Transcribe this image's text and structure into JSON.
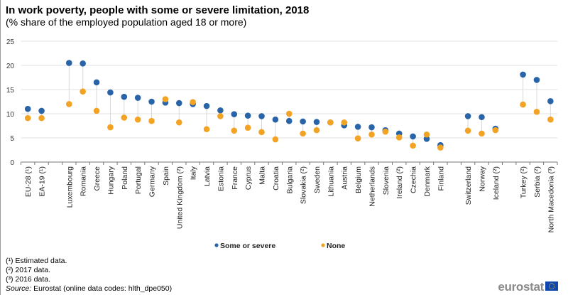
{
  "title": "In work poverty, people with some or severe limitation, 2018",
  "subtitle": "(% share of the employed population aged 18 or more)",
  "chart_data": {
    "type": "scatter",
    "title": "In work poverty, people with some or severe limitation, 2018",
    "subtitle": "(% share of the employed population aged 18 or more)",
    "categories": [
      "EU-28 (¹)",
      "EA-19 (¹)",
      "",
      "Luxembourg",
      "Romania",
      "Greece",
      "Hungary",
      "Poland",
      "Portugal",
      "Germany",
      "Spain",
      "United Kingdom (²)",
      "Italy",
      "Latvia",
      "Estonia",
      "France",
      "Cyprus",
      "Malta",
      "Croatia",
      "Bulgaria",
      "Slovakia (²)",
      "Sweden",
      "Lithuania",
      "Austria",
      "Belgium",
      "Netherlands",
      "Slovenia",
      "Ireland (²)",
      "Czechia",
      "Denmark",
      "Finland",
      "",
      "Switzerland",
      "Norway",
      "Iceland (²)",
      "",
      "Turkey (²)",
      "Serbia (²)",
      "North Macedonia (³)"
    ],
    "series": [
      {
        "name": "Some or severe",
        "color": "#2a64a8",
        "values": [
          11.0,
          10.6,
          null,
          20.5,
          20.4,
          16.5,
          14.4,
          13.5,
          13.3,
          12.5,
          12.3,
          12.2,
          12.0,
          11.6,
          10.7,
          9.9,
          9.6,
          9.5,
          8.8,
          8.5,
          8.4,
          8.3,
          8.2,
          7.6,
          7.3,
          7.2,
          6.6,
          5.9,
          5.3,
          4.8,
          3.5,
          null,
          9.5,
          9.3,
          6.9,
          null,
          18.1,
          17.0,
          12.6
        ]
      },
      {
        "name": "None",
        "color": "#f3a323",
        "values": [
          9.1,
          9.1,
          null,
          12.0,
          14.6,
          10.6,
          7.2,
          9.2,
          8.8,
          8.5,
          13.0,
          8.2,
          12.4,
          6.8,
          9.5,
          6.5,
          7.1,
          6.2,
          4.7,
          10.0,
          5.9,
          6.6,
          8.2,
          8.2,
          4.9,
          5.7,
          6.3,
          5.1,
          3.4,
          5.7,
          3.0,
          null,
          6.5,
          5.9,
          6.6,
          null,
          11.9,
          10.4,
          8.8
        ]
      }
    ],
    "ylim": [
      0,
      25
    ],
    "yticks": [
      "0",
      "5",
      "10",
      "15",
      "20",
      "25"
    ],
    "grid": true,
    "legend": "bottom-center"
  },
  "footnotes": [
    "(¹) Estimated data.",
    "(²) 2017 data.",
    "(³) 2016 data."
  ],
  "source_label": "Source:",
  "source_text": " Eurostat (online data codes: hlth_dpe050)",
  "logo": "eurostat"
}
